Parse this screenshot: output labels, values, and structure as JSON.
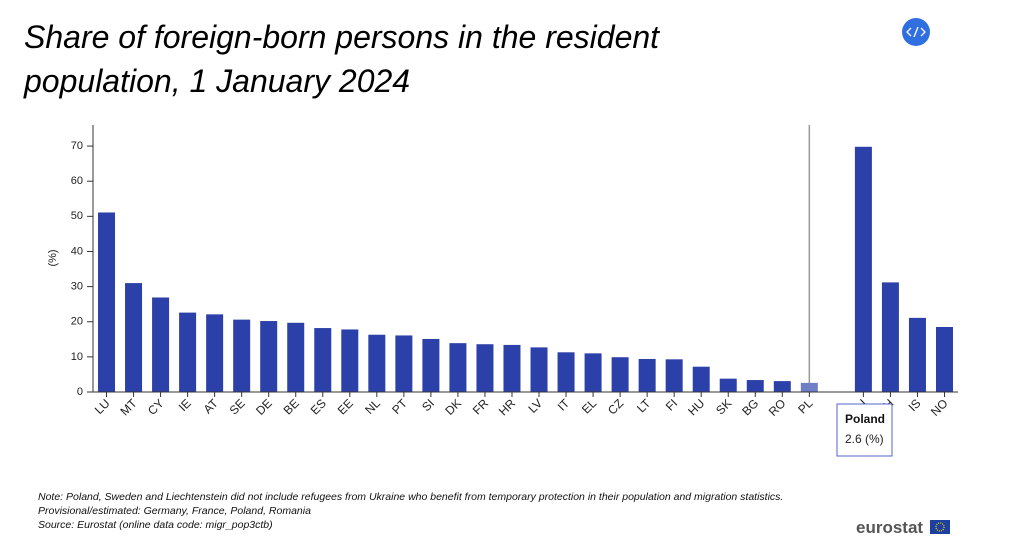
{
  "chart_data": {
    "type": "bar",
    "title_lines": [
      "Share of foreign-born persons in the resident",
      "population, 1 January 2024"
    ],
    "y_label": "(%)",
    "categories": [
      "LU",
      "MT",
      "CY",
      "IE",
      "AT",
      "SE",
      "DE",
      "BE",
      "ES",
      "EE",
      "NL",
      "PT",
      "SI",
      "DK",
      "FR",
      "HR",
      "LV",
      "IT",
      "EL",
      "CZ",
      "LT",
      "FI",
      "HU",
      "SK",
      "BG",
      "RO",
      "PL",
      null,
      "LI",
      "CH",
      "IS",
      "NO"
    ],
    "values": [
      51.1,
      31.0,
      26.9,
      22.6,
      22.1,
      20.6,
      20.2,
      19.7,
      18.2,
      17.8,
      16.3,
      16.1,
      15.1,
      13.9,
      13.6,
      13.4,
      12.7,
      11.3,
      11.0,
      9.9,
      9.4,
      9.3,
      7.2,
      3.8,
      3.4,
      3.1,
      2.6,
      null,
      69.8,
      31.2,
      21.1,
      18.5
    ],
    "color": "#2b40a8",
    "highlight_color": "#6e7fc6",
    "ylim": [
      0,
      76
    ],
    "yticks": [
      0,
      10,
      20,
      30,
      40,
      50,
      60,
      70
    ],
    "tooltip": {
      "index": 26,
      "name": "Poland",
      "label": "2.6 (%)"
    },
    "notes": [
      "Note: Poland, Sweden and Liechtenstein did not include refugees from Ukraine who benefit from temporary protection in their population and migration statistics.",
      "Provisional/estimated: Germany, France, Poland, Romania",
      "Source: Eurostat (online data code: migr_pop3ctb)"
    ],
    "logo": "eurostat"
  }
}
